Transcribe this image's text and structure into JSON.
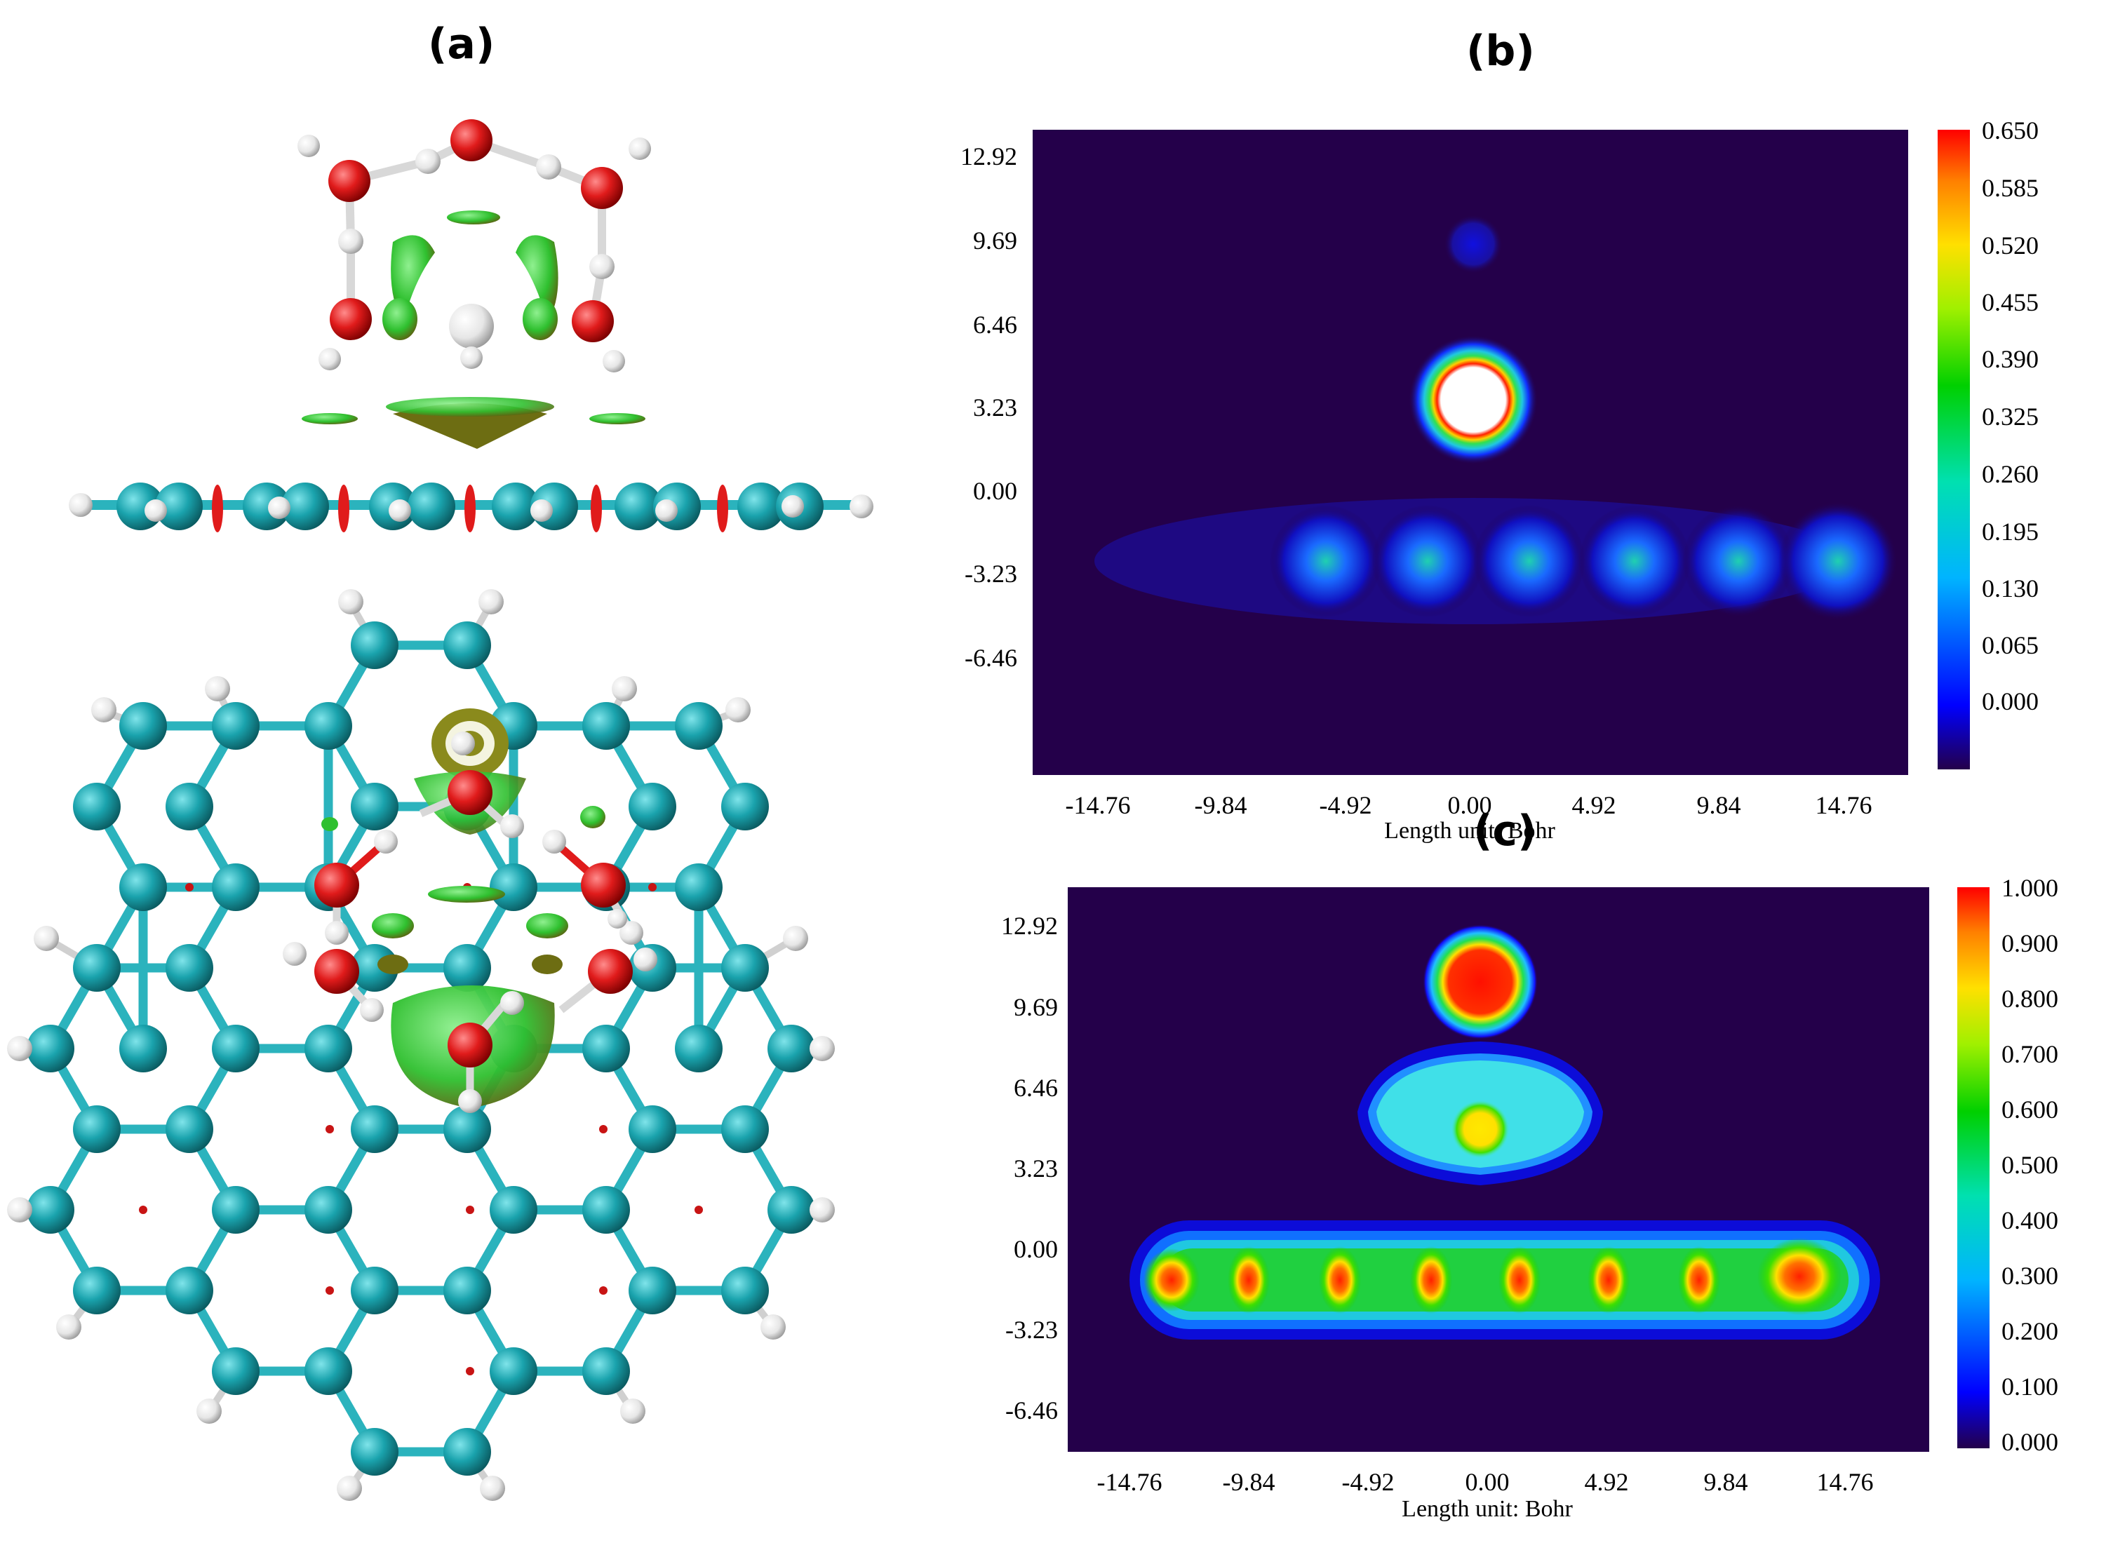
{
  "panels": {
    "a": {
      "label": "(a)"
    },
    "b": {
      "label": "(b)",
      "xlabel": "Length unit: Bohr",
      "xticks": [
        "-14.76",
        "-9.84",
        "-4.92",
        "0.00",
        "4.92",
        "9.84",
        "14.76"
      ],
      "yticks": [
        "12.92",
        "9.69",
        "6.46",
        "3.23",
        "0.00",
        "-3.23",
        "-6.46"
      ],
      "colorbar_ticks": [
        "0.650",
        "0.585",
        "0.520",
        "0.455",
        "0.390",
        "0.325",
        "0.260",
        "0.195",
        "0.130",
        "0.065",
        "0.000"
      ]
    },
    "c": {
      "label": "(c)",
      "xlabel": "Length unit: Bohr",
      "xticks": [
        "-14.76",
        "-9.84",
        "-4.92",
        "0.00",
        "4.92",
        "9.84",
        "14.76"
      ],
      "yticks": [
        "12.92",
        "9.69",
        "6.46",
        "3.23",
        "0.00",
        "-3.23",
        "-6.46"
      ],
      "colorbar_ticks": [
        "1.000",
        "0.900",
        "0.800",
        "0.700",
        "0.600",
        "0.500",
        "0.400",
        "0.300",
        "0.200",
        "0.100",
        "0.000"
      ]
    }
  },
  "colors": {
    "carbon": "#1aa3ad",
    "oxygen": "#e01b1b",
    "hydrogen": "#f0f0f0",
    "bond_cc": "#2bb3bd",
    "nci_green": "#2fc02f",
    "nci_olive": "#8a8a1c",
    "map_background": "#24004a"
  }
}
